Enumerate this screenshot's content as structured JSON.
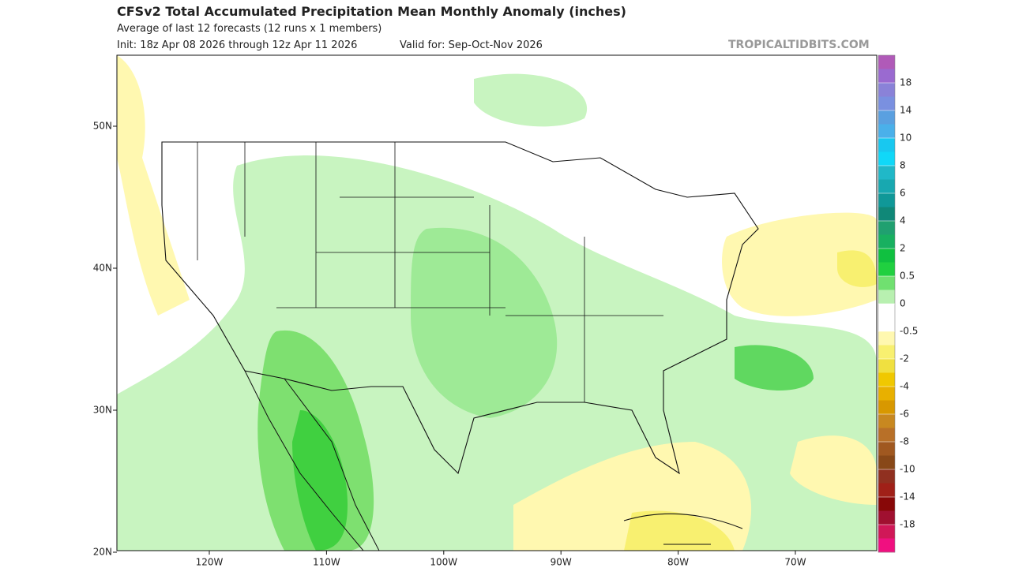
{
  "header": {
    "title": "CFSv2 Total Accumulated Precipitation Mean Monthly Anomaly (inches)",
    "subtitle": "Average of last 12 forecasts (12 runs x 1 members)",
    "init": "Init: 18z Apr 08 2026 through 12z Apr 11 2026",
    "valid": "Valid for: Sep-Oct-Nov 2026",
    "watermark": "TROPICALTIDBITS.COM"
  },
  "map": {
    "lat_labels": [
      "50N",
      "40N",
      "30N",
      "20N"
    ],
    "lon_labels": [
      "120W",
      "110W",
      "100W",
      "90W",
      "80W",
      "70W"
    ]
  },
  "colorbar": {
    "labels": [
      "18",
      "14",
      "10",
      "8",
      "6",
      "4",
      "2",
      "0.5",
      "0",
      "-0.5",
      "-2",
      "-4",
      "-6",
      "-8",
      "-10",
      "-14",
      "-18"
    ],
    "colors": [
      "#b05ab8",
      "#9a6ad0",
      "#8a82d8",
      "#7a90e0",
      "#5aa0e0",
      "#4ab0ea",
      "#18c8f0",
      "#10d8f8",
      "#20b8c8",
      "#18a8b0",
      "#109898",
      "#108878",
      "#20a070",
      "#18b060",
      "#10c040",
      "#20d040",
      "#70e070",
      "#b8f0b0",
      "#ffffff",
      "#ffffff",
      "#fff8b0",
      "#f8f070",
      "#f0e040",
      "#f0c800",
      "#e8b000",
      "#d89800",
      "#c88820",
      "#b87028",
      "#a05820",
      "#884818",
      "#903020",
      "#a02018",
      "#880808",
      "#a01030",
      "#d01858",
      "#f01080"
    ]
  }
}
